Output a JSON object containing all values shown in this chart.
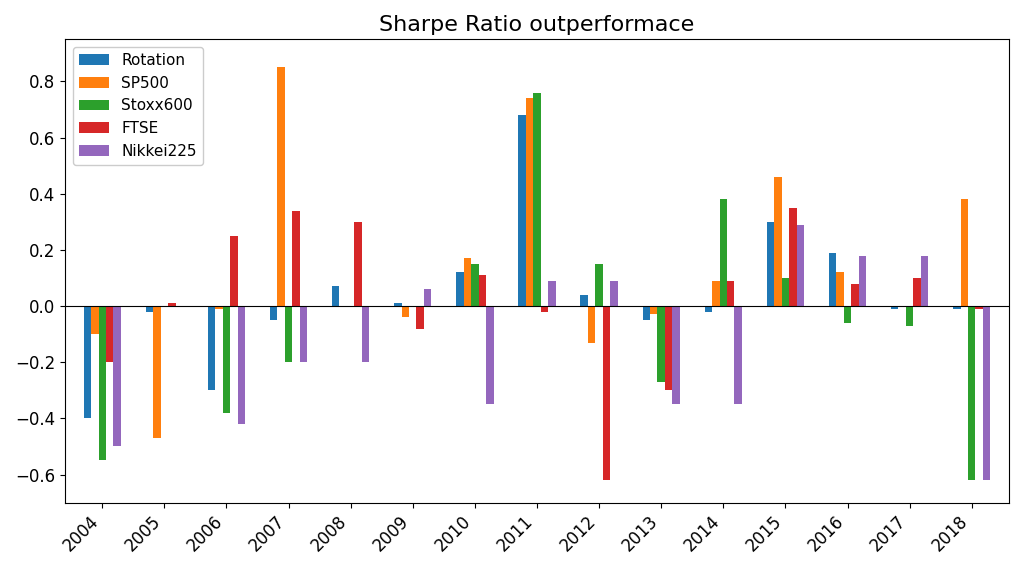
{
  "title": "Sharpe Ratio outperformace",
  "years": [
    2004,
    2005,
    2006,
    2007,
    2008,
    2009,
    2010,
    2011,
    2012,
    2013,
    2014,
    2015,
    2016,
    2017,
    2018
  ],
  "series": {
    "Rotation": {
      "color": "#1f77b4",
      "values": [
        -0.4,
        -0.02,
        -0.3,
        -0.05,
        0.07,
        0.01,
        0.12,
        0.68,
        0.04,
        -0.05,
        -0.02,
        0.3,
        0.19,
        -0.01,
        -0.01
      ]
    },
    "SP500": {
      "color": "#ff7f0e",
      "values": [
        -0.1,
        -0.47,
        -0.01,
        0.85,
        0.0,
        -0.04,
        0.17,
        0.74,
        -0.13,
        -0.03,
        0.09,
        0.46,
        0.12,
        0.0,
        0.38
      ]
    },
    "Stoxx600": {
      "color": "#2ca02c",
      "values": [
        -0.55,
        0.0,
        -0.38,
        -0.2,
        0.0,
        0.0,
        0.15,
        0.76,
        0.15,
        -0.27,
        0.38,
        0.1,
        -0.06,
        -0.07,
        -0.62
      ]
    },
    "FTSE": {
      "color": "#d62728",
      "values": [
        -0.2,
        0.01,
        0.25,
        0.34,
        0.3,
        -0.08,
        0.11,
        -0.02,
        -0.62,
        -0.3,
        0.09,
        0.35,
        0.08,
        0.1,
        -0.01
      ]
    },
    "Nikkei225": {
      "color": "#9467bd",
      "values": [
        -0.5,
        0.0,
        -0.42,
        -0.2,
        -0.2,
        0.06,
        -0.35,
        0.09,
        0.09,
        -0.35,
        -0.35,
        0.29,
        0.18,
        0.18,
        -0.62
      ]
    }
  },
  "ylim": [
    -0.7,
    0.95
  ],
  "figsize": [
    10.24,
    5.7
  ],
  "dpi": 100
}
